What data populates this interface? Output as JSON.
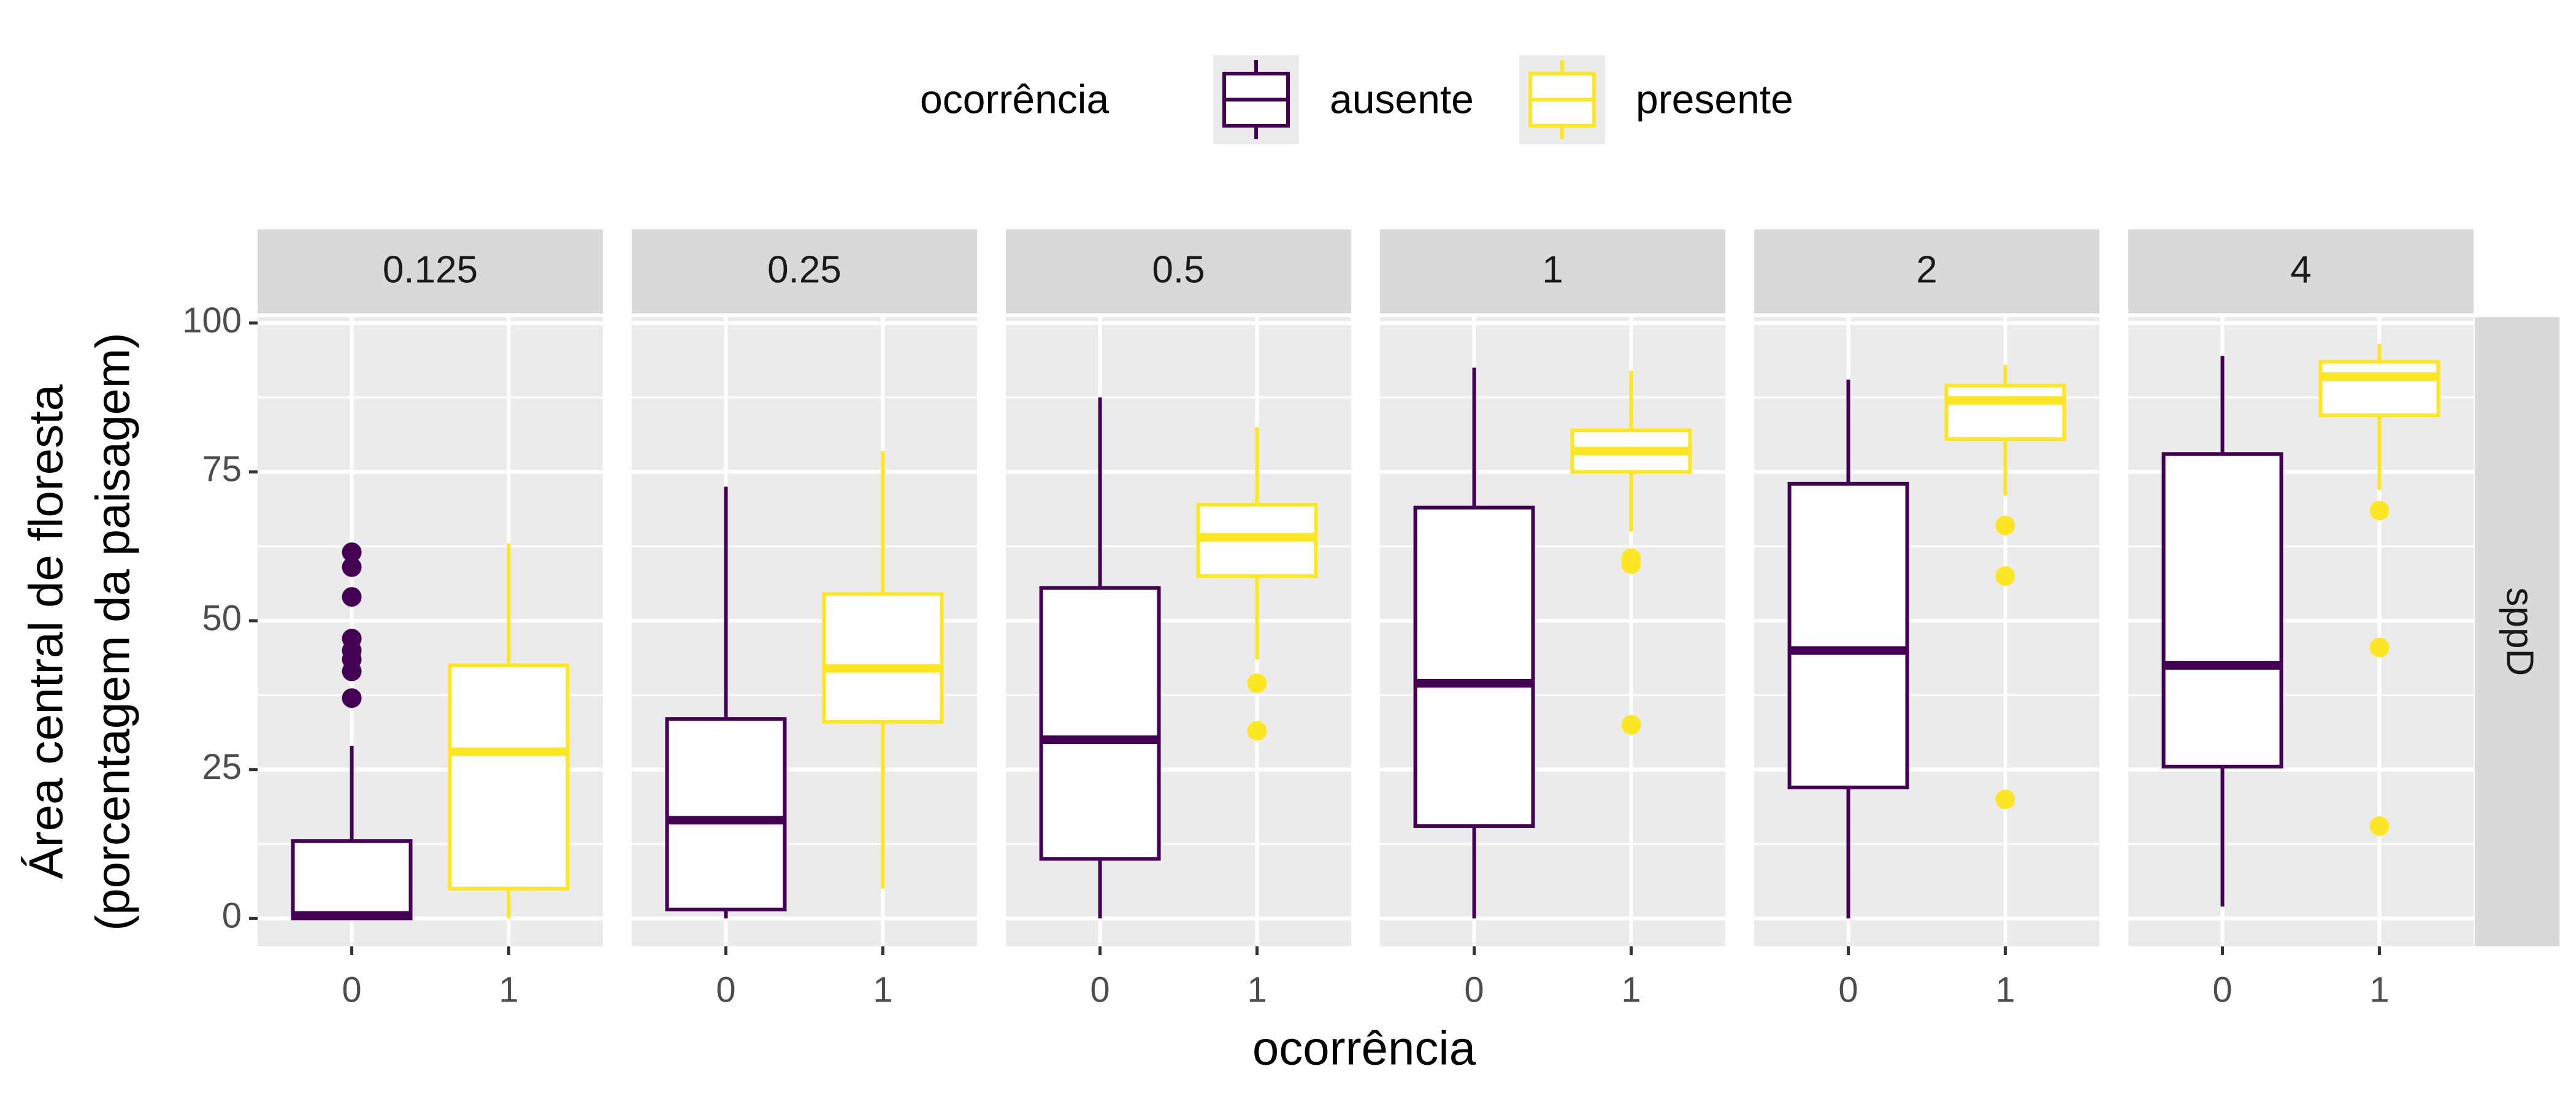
{
  "chart_data": {
    "type": "box",
    "legend_title": "ocorrência",
    "legend_position": "top",
    "x_label": "ocorrência",
    "y_label": [
      "Área central de floresta",
      "(porcentagem da paisagem)"
    ],
    "row_strip": "sppD",
    "facets": [
      "0.125",
      "0.25",
      "0.5",
      "1",
      "2",
      "4"
    ],
    "categories": [
      "0",
      "1"
    ],
    "ylim": [
      -4.7,
      101
    ],
    "yticks": [
      0,
      25,
      50,
      75,
      100
    ],
    "grid": true,
    "series": [
      {
        "name": "ausente",
        "color": "#440154",
        "values": [
          {
            "whislo": 0,
            "q1": 0,
            "med": 0.5,
            "q3": 13,
            "whishi": 29,
            "fliers": [
              61.5,
              59,
              54,
              47,
              45,
              43.5,
              41.5,
              37
            ]
          },
          {
            "whislo": 0,
            "q1": 1.5,
            "med": 16.5,
            "q3": 33.5,
            "whishi": 72.5,
            "fliers": []
          },
          {
            "whislo": 0,
            "q1": 10,
            "med": 30,
            "q3": 55.5,
            "whishi": 87.5,
            "fliers": []
          },
          {
            "whislo": 0,
            "q1": 15.5,
            "med": 39.5,
            "q3": 69,
            "whishi": 92.5,
            "fliers": []
          },
          {
            "whislo": 0,
            "q1": 22,
            "med": 45,
            "q3": 73,
            "whishi": 90.5,
            "fliers": []
          },
          {
            "whislo": 2,
            "q1": 25.5,
            "med": 42.5,
            "q3": 78,
            "whishi": 94.5,
            "fliers": []
          }
        ]
      },
      {
        "name": "presente",
        "color": "#FDE725",
        "values": [
          {
            "whislo": 0,
            "q1": 5,
            "med": 28,
            "q3": 42.5,
            "whishi": 63,
            "fliers": []
          },
          {
            "whislo": 5,
            "q1": 33,
            "med": 42,
            "q3": 54.5,
            "whishi": 78.5,
            "fliers": []
          },
          {
            "whislo": 43.5,
            "q1": 57.5,
            "med": 64,
            "q3": 69.5,
            "whishi": 82.5,
            "fliers": [
              39.5,
              31.5
            ]
          },
          {
            "whislo": 65,
            "q1": 75,
            "med": 78.5,
            "q3": 82,
            "whishi": 92,
            "fliers": [
              60.5,
              59.5,
              32.5
            ]
          },
          {
            "whislo": 71,
            "q1": 80.5,
            "med": 87,
            "q3": 89.5,
            "whishi": 93,
            "fliers": [
              66,
              57.5,
              20
            ]
          },
          {
            "whislo": 72,
            "q1": 84.5,
            "med": 91,
            "q3": 93.5,
            "whishi": 96.5,
            "fliers": [
              68.5,
              45.5,
              15.5
            ]
          }
        ]
      }
    ]
  }
}
